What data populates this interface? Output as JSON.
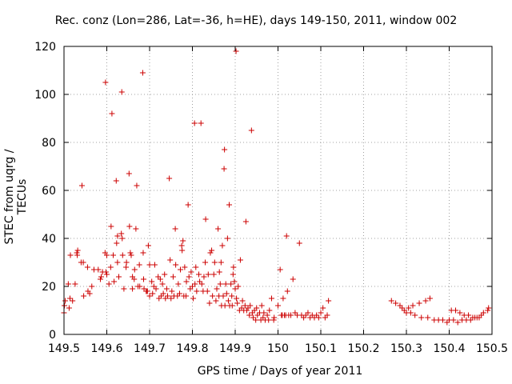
{
  "chart_data": {
    "type": "scatter",
    "title": "Rec. conz (Lon=286, Lat=-36, h=HE), days 149-150, 2011, window 002",
    "xlabel": "GPS time / Days of year 2011",
    "ylabel": "STEC from uqrg / TECUs",
    "xlim": [
      149.5,
      150.5
    ],
    "ylim": [
      0,
      120
    ],
    "x_ticks": [
      149.5,
      149.6,
      149.7,
      149.8,
      149.9,
      150,
      150.1,
      150.2,
      150.3,
      150.4,
      150.5
    ],
    "x_tick_labels": [
      "149.5",
      "149.6",
      "149.7",
      "149.8",
      "149.9",
      "150",
      "150.1",
      "150.2",
      "150.3",
      "150.4",
      "150.5"
    ],
    "y_ticks": [
      0,
      20,
      40,
      60,
      80,
      100,
      120
    ],
    "y_tick_labels": [
      "0",
      "20",
      "40",
      "60",
      "80",
      "100",
      "120"
    ],
    "grid": true,
    "marker": "+",
    "color": "#cc0000",
    "series": [
      {
        "points": [
          [
            149.5,
            9
          ],
          [
            149.501,
            12
          ],
          [
            149.503,
            14
          ],
          [
            149.51,
            21
          ],
          [
            149.512,
            11
          ],
          [
            149.514,
            15
          ],
          [
            149.515,
            33
          ],
          [
            149.52,
            14
          ],
          [
            149.526,
            21
          ],
          [
            149.53,
            34
          ],
          [
            149.531,
            33
          ],
          [
            149.532,
            35
          ],
          [
            149.54,
            30
          ],
          [
            149.542,
            62
          ],
          [
            149.545,
            30
          ],
          [
            149.546,
            16
          ],
          [
            149.555,
            28
          ],
          [
            149.556,
            18
          ],
          [
            149.56,
            17
          ],
          [
            149.565,
            20
          ],
          [
            149.57,
            27
          ],
          [
            149.58,
            27
          ],
          [
            149.585,
            23
          ],
          [
            149.587,
            24
          ],
          [
            149.59,
            26
          ],
          [
            149.596,
            34
          ],
          [
            149.597,
            105
          ],
          [
            149.598,
            26
          ],
          [
            149.6,
            33
          ],
          [
            149.6,
            25
          ],
          [
            149.605,
            21
          ],
          [
            149.609,
            28
          ],
          [
            149.61,
            45
          ],
          [
            149.612,
            92
          ],
          [
            149.615,
            33
          ],
          [
            149.617,
            22
          ],
          [
            149.622,
            64
          ],
          [
            149.623,
            38
          ],
          [
            149.625,
            30
          ],
          [
            149.625,
            41
          ],
          [
            149.628,
            24
          ],
          [
            149.634,
            42
          ],
          [
            149.635,
            101
          ],
          [
            149.636,
            40
          ],
          [
            149.637,
            33
          ],
          [
            149.64,
            19
          ],
          [
            149.645,
            28
          ],
          [
            149.646,
            30
          ],
          [
            149.652,
            67
          ],
          [
            149.653,
            45
          ],
          [
            149.655,
            34
          ],
          [
            149.657,
            33
          ],
          [
            149.66,
            19
          ],
          [
            149.66,
            24
          ],
          [
            149.664,
            23
          ],
          [
            149.665,
            27
          ],
          [
            149.668,
            44
          ],
          [
            149.67,
            62
          ],
          [
            149.673,
            20
          ],
          [
            149.676,
            29
          ],
          [
            149.677,
            20
          ],
          [
            149.684,
            109
          ],
          [
            149.685,
            34
          ],
          [
            149.686,
            23
          ],
          [
            149.687,
            19
          ],
          [
            149.692,
            18
          ],
          [
            149.693,
            18
          ],
          [
            149.695,
            18
          ],
          [
            149.697,
            37
          ],
          [
            149.7,
            16
          ],
          [
            149.7,
            29
          ],
          [
            149.705,
            22
          ],
          [
            149.707,
            17
          ],
          [
            149.71,
            20
          ],
          [
            149.712,
            29
          ],
          [
            149.715,
            19
          ],
          [
            149.72,
            24
          ],
          [
            149.722,
            15
          ],
          [
            149.725,
            23
          ],
          [
            149.727,
            16
          ],
          [
            149.73,
            21
          ],
          [
            149.732,
            17
          ],
          [
            149.735,
            25
          ],
          [
            149.737,
            15
          ],
          [
            149.74,
            19
          ],
          [
            149.742,
            16
          ],
          [
            149.746,
            65
          ],
          [
            149.748,
            31
          ],
          [
            149.75,
            15
          ],
          [
            149.752,
            18
          ],
          [
            149.755,
            24
          ],
          [
            149.757,
            16
          ],
          [
            149.76,
            44
          ],
          [
            149.761,
            29
          ],
          [
            149.765,
            16
          ],
          [
            149.767,
            21
          ],
          [
            149.77,
            17
          ],
          [
            149.772,
            27
          ],
          [
            149.775,
            37
          ],
          [
            149.776,
            35
          ],
          [
            149.778,
            39
          ],
          [
            149.78,
            16
          ],
          [
            149.782,
            28
          ],
          [
            149.785,
            16
          ],
          [
            149.786,
            22
          ],
          [
            149.79,
            54
          ],
          [
            149.792,
            24
          ],
          [
            149.795,
            19
          ],
          [
            149.797,
            26
          ],
          [
            149.8,
            20
          ],
          [
            149.802,
            15
          ],
          [
            149.805,
            88
          ],
          [
            149.806,
            21
          ],
          [
            149.808,
            28
          ],
          [
            149.81,
            18
          ],
          [
            149.815,
            25
          ],
          [
            149.817,
            22
          ],
          [
            149.82,
            88
          ],
          [
            149.822,
            21
          ],
          [
            149.825,
            18
          ],
          [
            149.827,
            24
          ],
          [
            149.83,
            30
          ],
          [
            149.831,
            48
          ],
          [
            149.835,
            18
          ],
          [
            149.837,
            25
          ],
          [
            149.84,
            13
          ],
          [
            149.842,
            34
          ],
          [
            149.845,
            35
          ],
          [
            149.847,
            16
          ],
          [
            149.85,
            25
          ],
          [
            149.852,
            30
          ],
          [
            149.855,
            14
          ],
          [
            149.857,
            19
          ],
          [
            149.86,
            44
          ],
          [
            149.862,
            16
          ],
          [
            149.863,
            26
          ],
          [
            149.865,
            21
          ],
          [
            149.867,
            30
          ],
          [
            149.868,
            12
          ],
          [
            149.87,
            37
          ],
          [
            149.872,
            16
          ],
          [
            149.874,
            69
          ],
          [
            149.875,
            77
          ],
          [
            149.876,
            12
          ],
          [
            149.878,
            21
          ],
          [
            149.88,
            17
          ],
          [
            149.882,
            40
          ],
          [
            149.884,
            14
          ],
          [
            149.886,
            54
          ],
          [
            149.887,
            12
          ],
          [
            149.89,
            21
          ],
          [
            149.892,
            16
          ],
          [
            149.893,
            12
          ],
          [
            149.895,
            25
          ],
          [
            149.896,
            28
          ],
          [
            149.898,
            22
          ],
          [
            149.9,
            19
          ],
          [
            149.902,
            118
          ],
          [
            149.903,
            15
          ],
          [
            149.905,
            13
          ],
          [
            149.907,
            20
          ],
          [
            149.91,
            10
          ],
          [
            149.912,
            31
          ],
          [
            149.915,
            11
          ],
          [
            149.917,
            14
          ],
          [
            149.92,
            10
          ],
          [
            149.923,
            12
          ],
          [
            149.925,
            47
          ],
          [
            149.927,
            10
          ],
          [
            149.93,
            11
          ],
          [
            149.933,
            8
          ],
          [
            149.935,
            12
          ],
          [
            149.938,
            85
          ],
          [
            149.94,
            9
          ],
          [
            149.942,
            7
          ],
          [
            149.945,
            10
          ],
          [
            149.948,
            6
          ],
          [
            149.95,
            11
          ],
          [
            149.952,
            8
          ],
          [
            149.957,
            9
          ],
          [
            149.96,
            6
          ],
          [
            149.962,
            12
          ],
          [
            149.965,
            7
          ],
          [
            149.967,
            9
          ],
          [
            149.97,
            6
          ],
          [
            149.975,
            8
          ],
          [
            149.978,
            6
          ],
          [
            149.98,
            10
          ],
          [
            149.985,
            15
          ],
          [
            149.99,
            6
          ],
          [
            149.991,
            7
          ],
          [
            150.0,
            12
          ],
          [
            150.005,
            27
          ],
          [
            150.008,
            8
          ],
          [
            150.01,
            8
          ],
          [
            150.012,
            15
          ],
          [
            150.015,
            8
          ],
          [
            150.018,
            8
          ],
          [
            150.02,
            41
          ],
          [
            150.022,
            18
          ],
          [
            150.025,
            8
          ],
          [
            150.03,
            8
          ],
          [
            150.035,
            23
          ],
          [
            150.04,
            9
          ],
          [
            150.045,
            8
          ],
          [
            150.05,
            38
          ],
          [
            150.055,
            8
          ],
          [
            150.06,
            7
          ],
          [
            150.065,
            8
          ],
          [
            150.07,
            9
          ],
          [
            150.075,
            7
          ],
          [
            150.08,
            8
          ],
          [
            150.085,
            7
          ],
          [
            150.09,
            8
          ],
          [
            150.095,
            7
          ],
          [
            150.1,
            9
          ],
          [
            150.105,
            11
          ],
          [
            150.11,
            7
          ],
          [
            150.115,
            8
          ],
          [
            150.118,
            14
          ],
          [
            150.265,
            14
          ],
          [
            150.275,
            13
          ],
          [
            150.285,
            12
          ],
          [
            150.29,
            11
          ],
          [
            150.295,
            10
          ],
          [
            150.3,
            9
          ],
          [
            150.305,
            11
          ],
          [
            150.31,
            9
          ],
          [
            150.315,
            12
          ],
          [
            150.32,
            8
          ],
          [
            150.33,
            13
          ],
          [
            150.335,
            7
          ],
          [
            150.345,
            14
          ],
          [
            150.35,
            7
          ],
          [
            150.355,
            15
          ],
          [
            150.365,
            6
          ],
          [
            150.375,
            6
          ],
          [
            150.385,
            6
          ],
          [
            150.395,
            5
          ],
          [
            150.4,
            6
          ],
          [
            150.405,
            10
          ],
          [
            150.41,
            6
          ],
          [
            150.415,
            10
          ],
          [
            150.42,
            5
          ],
          [
            150.425,
            9
          ],
          [
            150.43,
            6
          ],
          [
            150.435,
            8
          ],
          [
            150.44,
            6
          ],
          [
            150.445,
            8
          ],
          [
            150.45,
            6
          ],
          [
            150.455,
            7
          ],
          [
            150.46,
            7
          ],
          [
            150.465,
            7
          ],
          [
            150.47,
            7
          ],
          [
            150.475,
            8
          ],
          [
            150.48,
            9
          ],
          [
            150.49,
            10
          ],
          [
            150.492,
            11
          ]
        ]
      }
    ]
  }
}
